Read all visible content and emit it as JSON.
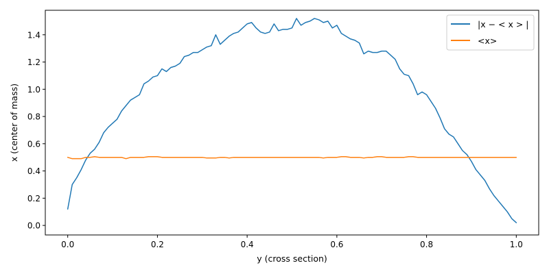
{
  "chart_data": {
    "type": "line",
    "xlabel": "y (cross section)",
    "ylabel": "x (center of mass)",
    "xlim": [
      -0.05,
      1.05
    ],
    "ylim": [
      -0.07,
      1.58
    ],
    "xticks": [
      0.0,
      0.2,
      0.4,
      0.6,
      0.8,
      1.0
    ],
    "xtick_labels": [
      "0.0",
      "0.2",
      "0.4",
      "0.6",
      "0.8",
      "1.0"
    ],
    "yticks": [
      0.0,
      0.2,
      0.4,
      0.6,
      0.8,
      1.0,
      1.2,
      1.4
    ],
    "ytick_labels": [
      "0.0",
      "0.2",
      "0.4",
      "0.6",
      "0.8",
      "1.0",
      "1.2",
      "1.4"
    ],
    "grid": false,
    "legend_position": "top-right",
    "series": [
      {
        "name": "|x − < x > |",
        "color": "#1f77b4",
        "x": [
          0.0,
          0.01,
          0.02,
          0.03,
          0.04,
          0.05,
          0.06,
          0.07,
          0.08,
          0.09,
          0.1,
          0.11,
          0.12,
          0.13,
          0.14,
          0.15,
          0.16,
          0.17,
          0.18,
          0.19,
          0.2,
          0.21,
          0.22,
          0.23,
          0.24,
          0.25,
          0.26,
          0.27,
          0.28,
          0.29,
          0.3,
          0.31,
          0.32,
          0.33,
          0.34,
          0.35,
          0.36,
          0.37,
          0.38,
          0.39,
          0.4,
          0.41,
          0.42,
          0.43,
          0.44,
          0.45,
          0.46,
          0.47,
          0.48,
          0.49,
          0.5,
          0.51,
          0.52,
          0.53,
          0.54,
          0.55,
          0.56,
          0.57,
          0.58,
          0.59,
          0.6,
          0.61,
          0.62,
          0.63,
          0.64,
          0.65,
          0.66,
          0.67,
          0.68,
          0.69,
          0.7,
          0.71,
          0.72,
          0.73,
          0.74,
          0.75,
          0.76,
          0.77,
          0.78,
          0.79,
          0.8,
          0.81,
          0.82,
          0.83,
          0.84,
          0.85,
          0.86,
          0.87,
          0.88,
          0.89,
          0.9,
          0.91,
          0.92,
          0.93,
          0.94,
          0.95,
          0.96,
          0.97,
          0.98,
          0.99,
          1.0
        ],
        "y": [
          0.12,
          0.3,
          0.35,
          0.41,
          0.48,
          0.53,
          0.56,
          0.61,
          0.68,
          0.72,
          0.75,
          0.78,
          0.84,
          0.88,
          0.92,
          0.94,
          0.96,
          1.04,
          1.06,
          1.09,
          1.1,
          1.15,
          1.13,
          1.16,
          1.17,
          1.19,
          1.24,
          1.25,
          1.27,
          1.27,
          1.29,
          1.31,
          1.32,
          1.4,
          1.33,
          1.36,
          1.39,
          1.41,
          1.42,
          1.45,
          1.48,
          1.49,
          1.45,
          1.42,
          1.41,
          1.42,
          1.48,
          1.43,
          1.44,
          1.44,
          1.45,
          1.52,
          1.47,
          1.49,
          1.5,
          1.52,
          1.51,
          1.49,
          1.5,
          1.45,
          1.47,
          1.41,
          1.39,
          1.37,
          1.36,
          1.34,
          1.26,
          1.28,
          1.27,
          1.27,
          1.28,
          1.28,
          1.25,
          1.22,
          1.15,
          1.11,
          1.1,
          1.04,
          0.96,
          0.98,
          0.96,
          0.91,
          0.86,
          0.79,
          0.71,
          0.67,
          0.65,
          0.6,
          0.55,
          0.52,
          0.47,
          0.41,
          0.37,
          0.33,
          0.27,
          0.22,
          0.18,
          0.14,
          0.1,
          0.05,
          0.02
        ]
      },
      {
        "name": "<x>",
        "color": "#ff7f0e",
        "x": [
          0.0,
          0.01,
          0.02,
          0.03,
          0.04,
          0.05,
          0.06,
          0.07,
          0.08,
          0.09,
          0.1,
          0.11,
          0.12,
          0.13,
          0.14,
          0.15,
          0.16,
          0.17,
          0.18,
          0.19,
          0.2,
          0.21,
          0.22,
          0.23,
          0.24,
          0.25,
          0.26,
          0.27,
          0.28,
          0.29,
          0.3,
          0.31,
          0.32,
          0.33,
          0.34,
          0.35,
          0.36,
          0.37,
          0.38,
          0.39,
          0.4,
          0.41,
          0.42,
          0.43,
          0.44,
          0.45,
          0.46,
          0.47,
          0.48,
          0.49,
          0.5,
          0.51,
          0.52,
          0.53,
          0.54,
          0.55,
          0.56,
          0.57,
          0.58,
          0.59,
          0.6,
          0.61,
          0.62,
          0.63,
          0.64,
          0.65,
          0.66,
          0.67,
          0.68,
          0.69,
          0.7,
          0.71,
          0.72,
          0.73,
          0.74,
          0.75,
          0.76,
          0.77,
          0.78,
          0.79,
          0.8,
          0.81,
          0.82,
          0.83,
          0.84,
          0.85,
          0.86,
          0.87,
          0.88,
          0.89,
          0.9,
          0.91,
          0.92,
          0.93,
          0.94,
          0.95,
          0.96,
          0.97,
          0.98,
          0.99,
          1.0
        ],
        "y": [
          0.5,
          0.49,
          0.49,
          0.49,
          0.5,
          0.5,
          0.505,
          0.5,
          0.5,
          0.5,
          0.5,
          0.5,
          0.5,
          0.49,
          0.5,
          0.5,
          0.5,
          0.5,
          0.505,
          0.505,
          0.505,
          0.5,
          0.5,
          0.5,
          0.5,
          0.5,
          0.5,
          0.5,
          0.5,
          0.5,
          0.5,
          0.495,
          0.495,
          0.495,
          0.5,
          0.5,
          0.495,
          0.5,
          0.5,
          0.5,
          0.5,
          0.5,
          0.5,
          0.5,
          0.5,
          0.5,
          0.5,
          0.5,
          0.5,
          0.5,
          0.5,
          0.5,
          0.5,
          0.5,
          0.5,
          0.5,
          0.5,
          0.495,
          0.5,
          0.5,
          0.5,
          0.505,
          0.505,
          0.5,
          0.5,
          0.5,
          0.495,
          0.5,
          0.5,
          0.505,
          0.505,
          0.5,
          0.5,
          0.5,
          0.5,
          0.5,
          0.505,
          0.505,
          0.5,
          0.5,
          0.5,
          0.5,
          0.5,
          0.5,
          0.5,
          0.5,
          0.5,
          0.5,
          0.5,
          0.5,
          0.5,
          0.5,
          0.5,
          0.5,
          0.5,
          0.5,
          0.5,
          0.5,
          0.5,
          0.5,
          0.5
        ]
      }
    ]
  }
}
